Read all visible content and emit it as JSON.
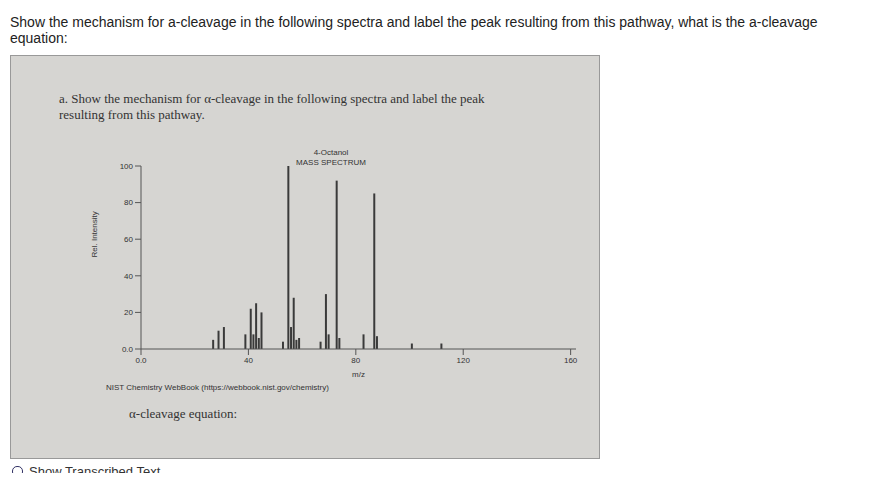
{
  "question": "Show the mechanism for a-cleavage in the following spectra and label the peak resulting from this pathway, what is the a-cleavage equation:",
  "prompt": "a. Show the mechanism for α-cleavage in the following spectra and label the peak resulting from this pathway.",
  "chart_data": {
    "type": "bar",
    "title": "4-Octanol",
    "subtitle": "MASS SPECTRUM",
    "x_label": "m/z",
    "y_label": "Rel. Intensity",
    "x": [
      27,
      29,
      31,
      39,
      41,
      42,
      43,
      44,
      45,
      53,
      55,
      56,
      57,
      58,
      59,
      67,
      69,
      70,
      73,
      74,
      83,
      87,
      88,
      101,
      112
    ],
    "values": [
      5,
      10,
      12,
      8,
      22,
      8,
      25,
      6,
      20,
      4,
      100,
      12,
      28,
      5,
      6,
      4,
      30,
      8,
      92,
      6,
      8,
      85,
      7,
      3,
      3
    ],
    "color": "#3a3a3a",
    "xlim": [
      0,
      162
    ],
    "xticks": [
      {
        "value": 0,
        "label": "0.0"
      },
      40,
      80,
      120,
      160
    ],
    "ylim": [
      0,
      100
    ],
    "yticks": [
      {
        "value": 0,
        "label": "0.0"
      },
      20,
      40,
      60,
      80,
      100
    ],
    "grid": false
  },
  "source": "NIST Chemistry WebBook (https://webbook.nist.gov/chemistry)",
  "answer_label": "α-cleavage equation:",
  "footer": "Show Transcribed Text"
}
